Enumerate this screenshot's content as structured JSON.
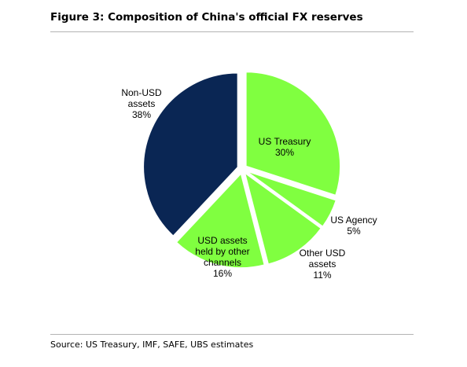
{
  "figure": {
    "title": "Figure 3: Composition of China's official FX reserves",
    "source": "Source:  US Treasury, IMF, SAFE, UBS estimates"
  },
  "chart_data": {
    "type": "pie",
    "title": "Figure 3: Composition of China's official FX reserves",
    "slices": [
      {
        "label_lines": [
          "US Treasury",
          "30%"
        ],
        "value": 30,
        "color": "#80ff40"
      },
      {
        "label_lines": [
          "US Agency",
          "5%"
        ],
        "value": 5,
        "color": "#80ff40"
      },
      {
        "label_lines": [
          "Other USD",
          "assets",
          "11%"
        ],
        "value": 11,
        "color": "#80ff40"
      },
      {
        "label_lines": [
          "USD assets",
          "held by other",
          "channels",
          "16%"
        ],
        "value": 16,
        "color": "#80ff40"
      },
      {
        "label_lines": [
          "Non-USD",
          "assets",
          "38%"
        ],
        "value": 38,
        "color": "#0a2654"
      }
    ],
    "start": "12 o'clock",
    "direction": "clockwise",
    "exploded": true,
    "legend": "none"
  }
}
